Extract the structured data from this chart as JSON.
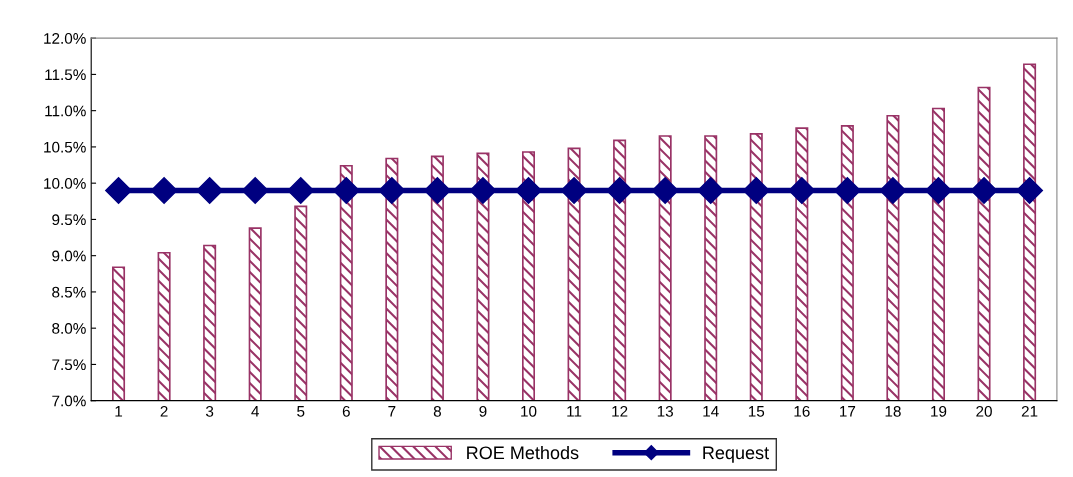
{
  "chart_data": {
    "type": "bar",
    "categories": [
      "1",
      "2",
      "3",
      "4",
      "5",
      "6",
      "7",
      "8",
      "9",
      "10",
      "11",
      "12",
      "13",
      "14",
      "15",
      "16",
      "17",
      "18",
      "19",
      "20",
      "21"
    ],
    "series": [
      {
        "name": "ROE Methods",
        "color": "#993366",
        "values": [
          8.84,
          9.04,
          9.14,
          9.38,
          9.68,
          10.24,
          10.34,
          10.37,
          10.41,
          10.43,
          10.48,
          10.59,
          10.65,
          10.65,
          10.68,
          10.76,
          10.79,
          10.93,
          11.03,
          11.32,
          11.64
        ]
      },
      {
        "name": "Request",
        "type": "line",
        "color": "#000080",
        "marker": "diamond",
        "values": [
          9.9,
          9.9,
          9.9,
          9.9,
          9.9,
          9.9,
          9.9,
          9.9,
          9.9,
          9.9,
          9.9,
          9.9,
          9.9,
          9.9,
          9.9,
          9.9,
          9.9,
          9.9,
          9.9,
          9.9,
          9.9
        ]
      }
    ],
    "ylim": [
      7,
      12
    ],
    "yticks": [
      {
        "value": 7,
        "label": "7.0%"
      },
      {
        "value": 7.5,
        "label": "7.5%"
      },
      {
        "value": 8,
        "label": "8.0%"
      },
      {
        "value": 8.5,
        "label": "8.5%"
      },
      {
        "value": 9,
        "label": "9.0%"
      },
      {
        "value": 9.5,
        "label": "9.5%"
      },
      {
        "value": 10,
        "label": "10.0%"
      },
      {
        "value": 10.5,
        "label": "10.5%"
      },
      {
        "value": 11,
        "label": "11.0%"
      },
      {
        "value": 11.5,
        "label": "11.5%"
      },
      {
        "value": 12,
        "label": "12.0%"
      }
    ],
    "grid": false,
    "legend": "bottom"
  }
}
